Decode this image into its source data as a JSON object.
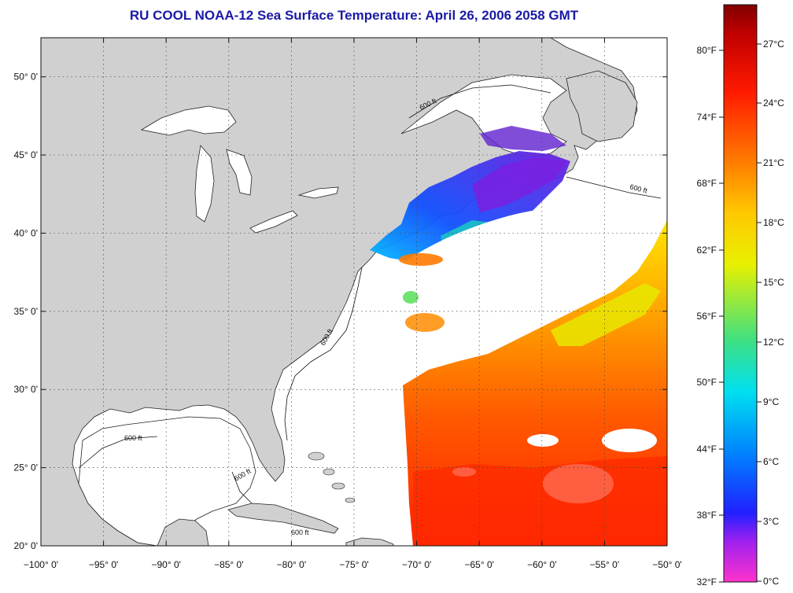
{
  "title": "RU COOL  NOAA-12  Sea Surface Temperature:  April 26, 2006 2058 GMT",
  "map": {
    "lon_range": [
      -100,
      -50
    ],
    "lat_range": [
      20,
      52.5
    ],
    "lon_ticks": [
      "−100° 0'",
      "−95° 0'",
      "−90° 0'",
      "−85° 0'",
      "−80° 0'",
      "−75° 0'",
      "−70° 0'",
      "−65° 0'",
      "−60° 0'",
      "−55° 0'",
      "−50° 0'"
    ],
    "lat_ticks": [
      "20° 0'",
      "25° 0'",
      "30° 0'",
      "35° 0'",
      "40° 0'",
      "45° 0'",
      "50° 0'"
    ],
    "contour_label": "600 ft",
    "land_color": "#d0d0d0",
    "ocean_color": "#ffffff"
  },
  "colorbar": {
    "fahrenheit_labels": [
      "80°F",
      "74°F",
      "68°F",
      "62°F",
      "56°F",
      "50°F",
      "44°F",
      "38°F",
      "32°F"
    ],
    "celsius_labels": [
      "27°C",
      "24°C",
      "21°C",
      "18°C",
      "15°C",
      "12°C",
      "9°C",
      "6°C",
      "3°C",
      "0°C"
    ],
    "gradient_stops": [
      "#ff33cc",
      "#8a2be2",
      "#1010ff",
      "#00aaff",
      "#00e5e5",
      "#4fe04f",
      "#e8f000",
      "#ffd000",
      "#ff8000",
      "#ff2000",
      "#b00000",
      "#800000"
    ]
  }
}
